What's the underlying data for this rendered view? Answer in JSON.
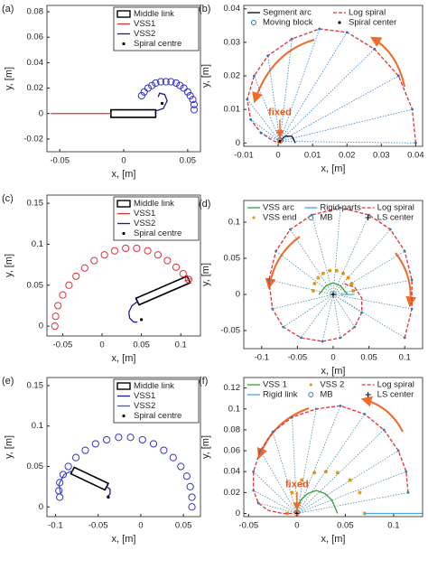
{
  "chart_data": [
    {
      "type": "trajectory",
      "panel": "(a)",
      "xlabel": "x, [m]",
      "ylabel": "y, [m]",
      "xlim": [
        -0.06,
        0.06
      ],
      "ylim": [
        -0.03,
        0.085
      ],
      "xticks": [
        -0.05,
        0,
        0.05
      ],
      "yticks": [
        -0.02,
        0,
        0.02,
        0.04,
        0.06,
        0.08
      ],
      "legend": "upper right",
      "legend_columns": 1,
      "series": [
        {
          "name": "Middle link",
          "style": "box",
          "color": "#000000",
          "x": [
            -0.01,
            0.025,
            0.025,
            -0.01
          ],
          "y": [
            -0.003,
            -0.003,
            0.003,
            0.003
          ]
        },
        {
          "name": "VSS1",
          "style": "line",
          "color": "#e0303a",
          "x": [
            -0.057,
            -0.01
          ],
          "y": [
            0,
            0
          ]
        },
        {
          "name": "VSS2",
          "style": "line",
          "color": "#1a1aa0",
          "x": [
            0.025,
            0.031,
            0.034,
            0.032,
            0.028,
            0.027
          ],
          "y": [
            0.002,
            0.004,
            0.01,
            0.015,
            0.016,
            0.013
          ]
        },
        {
          "name": "Spiral centre",
          "style": "center-dot",
          "color": "#000000",
          "x": [
            0.03
          ],
          "y": [
            0.008
          ]
        },
        {
          "style": "circles",
          "color": "#3333cc",
          "x": [
            0.014,
            0.016,
            0.019,
            0.022,
            0.025,
            0.029,
            0.033,
            0.037,
            0.041,
            0.044,
            0.047,
            0.05,
            0.052,
            0.054,
            0.055,
            0.055
          ],
          "y": [
            0.014,
            0.017,
            0.02,
            0.022,
            0.024,
            0.025,
            0.025,
            0.025,
            0.024,
            0.022,
            0.02,
            0.017,
            0.014,
            0.011,
            0.007,
            0.003
          ]
        }
      ]
    },
    {
      "type": "trajectory",
      "panel": "(b)",
      "xlabel": "x, [m]",
      "ylabel": "y, [m]",
      "annotation": "fixed",
      "xlim": [
        -0.01,
        0.042
      ],
      "ylim": [
        -0.001,
        0.041
      ],
      "xticks": [
        -0.01,
        0,
        0.01,
        0.02,
        0.03,
        0.04
      ],
      "yticks": [
        0,
        0.01,
        0.02,
        0.03,
        0.04
      ],
      "legend": "top",
      "legend_columns": 2,
      "series": [
        {
          "name": "Segment arc",
          "style": "line",
          "color": "#000000",
          "x": [
            0,
            0.002,
            0.004,
            0.005
          ],
          "y": [
            0,
            0.002,
            0.002,
            0
          ]
        },
        {
          "name": "Log spiral",
          "style": "dashed",
          "color": "#e0303a",
          "x": [
            0.04,
            0.039,
            0.035,
            0.028,
            0.02,
            0.012,
            0.004,
            -0.003,
            -0.007,
            -0.009,
            -0.008,
            -0.005,
            -0.002,
            0
          ],
          "y": [
            0,
            0.01,
            0.02,
            0.028,
            0.033,
            0.034,
            0.031,
            0.026,
            0.02,
            0.013,
            0.007,
            0.003,
            0.001,
            0
          ]
        },
        {
          "name": "Moving block",
          "style": "fan",
          "color": "#1f6fd1",
          "x": [
            0.04,
            0.039,
            0.035,
            0.028,
            0.02,
            0.012,
            0.004,
            -0.003,
            -0.007,
            -0.009,
            -0.008,
            -0.005
          ],
          "y": [
            0,
            0.01,
            0.02,
            0.028,
            0.033,
            0.034,
            0.031,
            0.026,
            0.02,
            0.013,
            0.007,
            0.003
          ]
        },
        {
          "name": "Spiral center",
          "style": "center-dot",
          "color": "#000000",
          "x": [
            0.0005
          ],
          "y": [
            0.0005
          ]
        }
      ]
    },
    {
      "type": "trajectory",
      "panel": "(c)",
      "xlabel": "x, [m]",
      "ylabel": "y, [m]",
      "xlim": [
        -0.07,
        0.125
      ],
      "ylim": [
        -0.012,
        0.16
      ],
      "xticks": [
        -0.05,
        0,
        0.05,
        0.1
      ],
      "yticks": [
        0,
        0.05,
        0.1,
        0.15
      ],
      "legend": "upper right",
      "legend_columns": 1,
      "series": [
        {
          "name": "Middle link",
          "style": "box",
          "color": "#000000",
          "x": [
            0.043,
            0.047,
            0.112,
            0.108
          ],
          "y": [
            0.034,
            0.026,
            0.053,
            0.061
          ]
        },
        {
          "name": "VSS1",
          "style": "line",
          "color": "#e0303a",
          "x": [
            0.105,
            0.113
          ],
          "y": [
            0.055,
            0.058
          ]
        },
        {
          "name": "VSS2",
          "style": "line",
          "color": "#1a1aa0",
          "x": [
            0.045,
            0.038,
            0.034,
            0.035,
            0.04,
            0.045
          ],
          "y": [
            0.03,
            0.025,
            0.017,
            0.01,
            0.005,
            0.005
          ]
        },
        {
          "name": "Spiral centre",
          "style": "center-dot",
          "color": "#000000",
          "x": [
            0.05
          ],
          "y": [
            0.008
          ]
        },
        {
          "style": "circles",
          "color": "#e0303a",
          "x": [
            -0.06,
            -0.059,
            -0.056,
            -0.05,
            -0.042,
            -0.033,
            -0.022,
            -0.01,
            0.003,
            0.016,
            0.03,
            0.044,
            0.058,
            0.071,
            0.083,
            0.094,
            0.103,
            0.11
          ],
          "y": [
            0,
            0.012,
            0.025,
            0.038,
            0.05,
            0.061,
            0.071,
            0.08,
            0.087,
            0.092,
            0.095,
            0.095,
            0.092,
            0.087,
            0.08,
            0.072,
            0.064,
            0.057
          ]
        }
      ]
    },
    {
      "type": "trajectory",
      "panel": "(d)",
      "xlabel": "x, [m]",
      "ylabel": "y, [m]",
      "xlim": [
        -0.125,
        0.125
      ],
      "ylim": [
        -0.075,
        0.13
      ],
      "xticks": [
        -0.1,
        -0.05,
        0,
        0.05,
        0.1
      ],
      "yticks": [
        -0.05,
        0,
        0.05,
        0.1
      ],
      "legend": "top",
      "legend_columns": 3,
      "series": [
        {
          "name": "VSS arc",
          "style": "line",
          "color": "#2ca02c",
          "x": [
            -0.02,
            -0.01,
            0,
            0.01,
            0.02
          ],
          "y": [
            0,
            0.012,
            0.016,
            0.012,
            0
          ]
        },
        {
          "name": "Rigid parts",
          "style": "line",
          "color": "#4aa8d8",
          "x": [
            0.01,
            0.03
          ],
          "y": [
            0,
            0
          ]
        },
        {
          "name": "Log spiral",
          "style": "dashed",
          "color": "#e0303a",
          "x": [
            0.1,
            0.11,
            0.11,
            0.1,
            0.08,
            0.05,
            0.01,
            -0.03,
            -0.06,
            -0.08,
            -0.09,
            -0.085,
            -0.07,
            -0.045,
            -0.015,
            0.01,
            0.03,
            0.04,
            0.04,
            0.03,
            0.015
          ],
          "y": [
            -0.06,
            -0.02,
            0.02,
            0.06,
            0.09,
            0.11,
            0.12,
            0.11,
            0.09,
            0.06,
            0.02,
            -0.02,
            -0.045,
            -0.06,
            -0.065,
            -0.06,
            -0.045,
            -0.025,
            -0.005,
            0.01,
            0.015
          ]
        },
        {
          "name": "VSS end",
          "style": "dots",
          "color": "#e89a1c",
          "x": [
            0.028,
            0.026,
            0.021,
            0.014,
            0.005,
            -0.005,
            -0.014,
            -0.021,
            -0.026,
            -0.028
          ],
          "y": [
            0.005,
            0.015,
            0.023,
            0.029,
            0.033,
            0.033,
            0.029,
            0.023,
            0.015,
            0.005
          ]
        },
        {
          "name": "MB",
          "style": "fan",
          "color": "#3a7fa0",
          "x": [
            0.1,
            0.11,
            0.11,
            0.1,
            0.08,
            0.05,
            0.01,
            -0.03,
            -0.06,
            -0.08,
            -0.09,
            -0.085,
            -0.07,
            -0.045,
            -0.015,
            0.01,
            0.03,
            0.04
          ],
          "y": [
            -0.06,
            -0.02,
            0.02,
            0.06,
            0.09,
            0.11,
            0.12,
            0.11,
            0.09,
            0.06,
            0.02,
            -0.02,
            -0.045,
            -0.06,
            -0.065,
            -0.06,
            -0.045,
            -0.025
          ]
        },
        {
          "name": "LS center",
          "style": "center-plus",
          "color": "#000000",
          "x": [
            0
          ],
          "y": [
            0
          ]
        }
      ]
    },
    {
      "type": "trajectory",
      "panel": "(e)",
      "xlabel": "x, [m]",
      "ylabel": "y, [m]",
      "xlim": [
        -0.11,
        0.07
      ],
      "ylim": [
        -0.012,
        0.16
      ],
      "xticks": [
        -0.1,
        -0.05,
        0,
        0.05
      ],
      "yticks": [
        0,
        0.05,
        0.1,
        0.15
      ],
      "legend": "upper right",
      "legend_columns": 1,
      "series": [
        {
          "name": "Middle link",
          "style": "box",
          "color": "#000000",
          "x": [
            -0.042,
            -0.038,
            -0.078,
            -0.082
          ],
          "y": [
            0.021,
            0.029,
            0.049,
            0.041
          ]
        },
        {
          "name": "VSS1",
          "style": "line",
          "color": "#1a1aa0",
          "x": [
            -0.04,
            -0.036,
            -0.036,
            -0.04
          ],
          "y": [
            0.025,
            0.022,
            0.016,
            0.012
          ]
        },
        {
          "name": "VSS2",
          "style": "line",
          "color": "#3355dd",
          "x": [
            -0.08,
            -0.09,
            -0.096,
            -0.094
          ],
          "y": [
            0.045,
            0.04,
            0.028,
            0.016
          ]
        },
        {
          "name": "Spiral centre",
          "style": "center-dot",
          "color": "#000000",
          "x": [
            -0.038
          ],
          "y": [
            0.012
          ]
        },
        {
          "style": "circles",
          "color": "#3333cc",
          "x": [
            0.06,
            0.06,
            0.058,
            0.054,
            0.047,
            0.038,
            0.027,
            0.015,
            0.002,
            -0.012,
            -0.026,
            -0.04,
            -0.053,
            -0.065,
            -0.076,
            -0.085,
            -0.091,
            -0.095,
            -0.096,
            -0.095
          ],
          "y": [
            0,
            0.012,
            0.025,
            0.038,
            0.05,
            0.061,
            0.07,
            0.078,
            0.083,
            0.086,
            0.086,
            0.083,
            0.078,
            0.07,
            0.061,
            0.05,
            0.04,
            0.03,
            0.02,
            0.012
          ]
        }
      ]
    },
    {
      "type": "trajectory",
      "panel": "(f)",
      "xlabel": "x, [m]",
      "ylabel": "y, [m]",
      "annotation": "fixed",
      "xlim": [
        -0.055,
        0.13
      ],
      "ylim": [
        -0.003,
        0.13
      ],
      "xticks": [
        -0.05,
        0,
        0.05,
        0.1
      ],
      "yticks": [
        0,
        0.02,
        0.04,
        0.06,
        0.08,
        0.1,
        0.12
      ],
      "legend": "top",
      "legend_columns": 3,
      "series": [
        {
          "name": "VSS 1",
          "style": "line",
          "color": "#2ca02c",
          "x": [
            -0.002,
            0.004,
            0.011,
            0.02,
            0.029,
            0.036,
            0.042
          ],
          "y": [
            0,
            0.013,
            0.019,
            0.022,
            0.019,
            0.013,
            0
          ]
        },
        {
          "name": "VSS 2",
          "style": "dots",
          "color": "#e89a1c",
          "x": [
            -0.01,
            -0.005,
            0.005,
            0.018,
            0.03,
            0.042,
            0.055,
            0.065,
            0.07
          ],
          "y": [
            0,
            0.02,
            0.032,
            0.039,
            0.04,
            0.039,
            0.032,
            0.02,
            0
          ]
        },
        {
          "name": "Log spiral",
          "style": "dashed",
          "color": "#e0303a",
          "x": [
            0.115,
            0.113,
            0.105,
            0.09,
            0.07,
            0.045,
            0.02,
            -0.005,
            -0.025,
            -0.038,
            -0.045,
            -0.045,
            -0.04,
            -0.03,
            -0.015,
            0
          ],
          "y": [
            0.02,
            0.04,
            0.06,
            0.08,
            0.095,
            0.103,
            0.1,
            0.092,
            0.078,
            0.06,
            0.04,
            0.022,
            0.01,
            0.003,
            0,
            0
          ]
        },
        {
          "name": "Rigid link",
          "style": "line",
          "color": "#4aa8d8",
          "x": [
            0.07,
            0.13
          ],
          "y": [
            0,
            0
          ]
        },
        {
          "name": "MB",
          "style": "fan",
          "color": "#3a7fa0",
          "x": [
            0.115,
            0.113,
            0.105,
            0.09,
            0.07,
            0.045,
            0.02,
            -0.005,
            -0.025,
            -0.038,
            -0.045,
            -0.045,
            -0.04
          ],
          "y": [
            0.02,
            0.04,
            0.06,
            0.08,
            0.095,
            0.103,
            0.1,
            0.092,
            0.078,
            0.06,
            0.04,
            0.022,
            0.01
          ]
        },
        {
          "name": "LS center",
          "style": "center-plus",
          "color": "#000000",
          "x": [
            0
          ],
          "y": [
            0
          ]
        }
      ]
    }
  ]
}
